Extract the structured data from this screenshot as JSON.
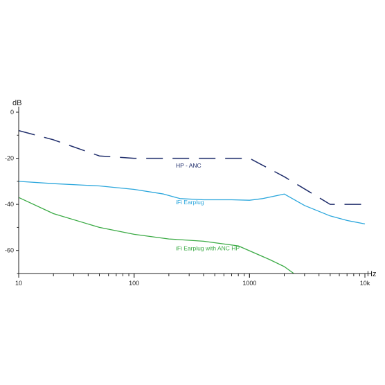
{
  "chart_data": {
    "type": "line",
    "xlabel": "Hz",
    "ylabel": "dB",
    "x_scale": "log",
    "xlim": [
      10,
      10000
    ],
    "ylim": [
      -70,
      0
    ],
    "grid": false,
    "x_ticks": [
      {
        "value": 10,
        "label": "10"
      },
      {
        "value": 100,
        "label": "100"
      },
      {
        "value": 1000,
        "label": "1000"
      },
      {
        "value": 10000,
        "label": "10k"
      }
    ],
    "y_ticks": [
      {
        "value": 0,
        "label": "0"
      },
      {
        "value": -20,
        "label": "-20"
      },
      {
        "value": -40,
        "label": "-40"
      },
      {
        "value": -60,
        "label": "-60"
      }
    ],
    "series": [
      {
        "name": "HP - ANC",
        "color": "#1f2d6b",
        "style": "dashed",
        "x": [
          10,
          20,
          50,
          100,
          200,
          500,
          1000,
          2000,
          5000,
          10000
        ],
        "y": [
          -8,
          -12,
          -19,
          -20,
          -20,
          -20,
          -20,
          -28,
          -40,
          -40
        ]
      },
      {
        "name": "iFi Earplug",
        "color": "#2aa6dc",
        "style": "solid",
        "x": [
          10,
          20,
          50,
          100,
          180,
          250,
          400,
          700,
          1000,
          1300,
          2000,
          3000,
          5000,
          7000,
          10000
        ],
        "y": [
          -30,
          -31,
          -32,
          -33.5,
          -35.5,
          -37.5,
          -38,
          -38,
          -38.2,
          -37.5,
          -35.5,
          -40.5,
          -45,
          -47,
          -48.5
        ]
      },
      {
        "name": "iFi Earplug with ANC HP",
        "color": "#3aaa44",
        "style": "solid",
        "x": [
          10,
          20,
          50,
          100,
          200,
          400,
          800,
          1500,
          2000,
          2500
        ],
        "y": [
          -37,
          -44,
          -50,
          -53,
          -55,
          -56,
          -58,
          -64,
          -67,
          -70.5
        ]
      }
    ],
    "annotations": [
      {
        "text": "HP - ANC",
        "x": 230,
        "y": -24,
        "color": "#1f2d6b"
      },
      {
        "text": "iFi Earplug",
        "x": 230,
        "y": -40,
        "color": "#2aa6dc"
      },
      {
        "text": "iFi Earplug with ANC HP",
        "x": 230,
        "y": -60,
        "color": "#3aaa44"
      }
    ]
  }
}
